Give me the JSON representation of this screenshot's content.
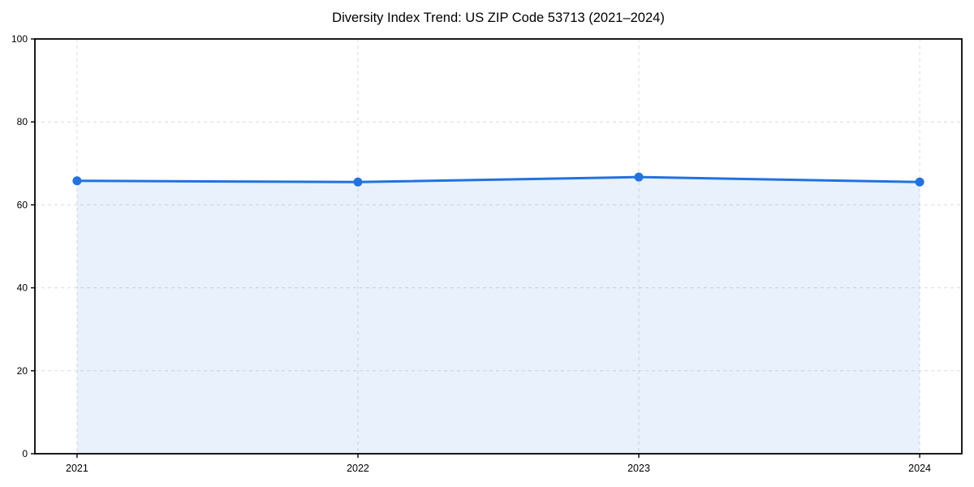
{
  "chart_data": {
    "type": "area",
    "title": "Diversity Index Trend: US ZIP Code 53713 (2021–2024)",
    "series_name": "Diversity Index",
    "x": [
      2021,
      2022,
      2023,
      2024
    ],
    "values": [
      65.8,
      65.5,
      66.7,
      65.5
    ],
    "xlabel": "",
    "ylabel": "",
    "xlim": [
      2020.85,
      2024.15
    ],
    "ylim": [
      0,
      100
    ],
    "xticks": [
      2021,
      2022,
      2023,
      2024
    ],
    "yticks": [
      0,
      20,
      40,
      60,
      80,
      100
    ],
    "grid": true,
    "grid_style": "dashed",
    "legend_position": "none",
    "colors": {
      "line": "#2272e0",
      "marker": "#2272e0",
      "fill": "rgba(34,114,224,0.10)",
      "grid": "#dcdcdc",
      "spine": "#000000",
      "text": "#000000",
      "background": "#ffffff"
    }
  }
}
